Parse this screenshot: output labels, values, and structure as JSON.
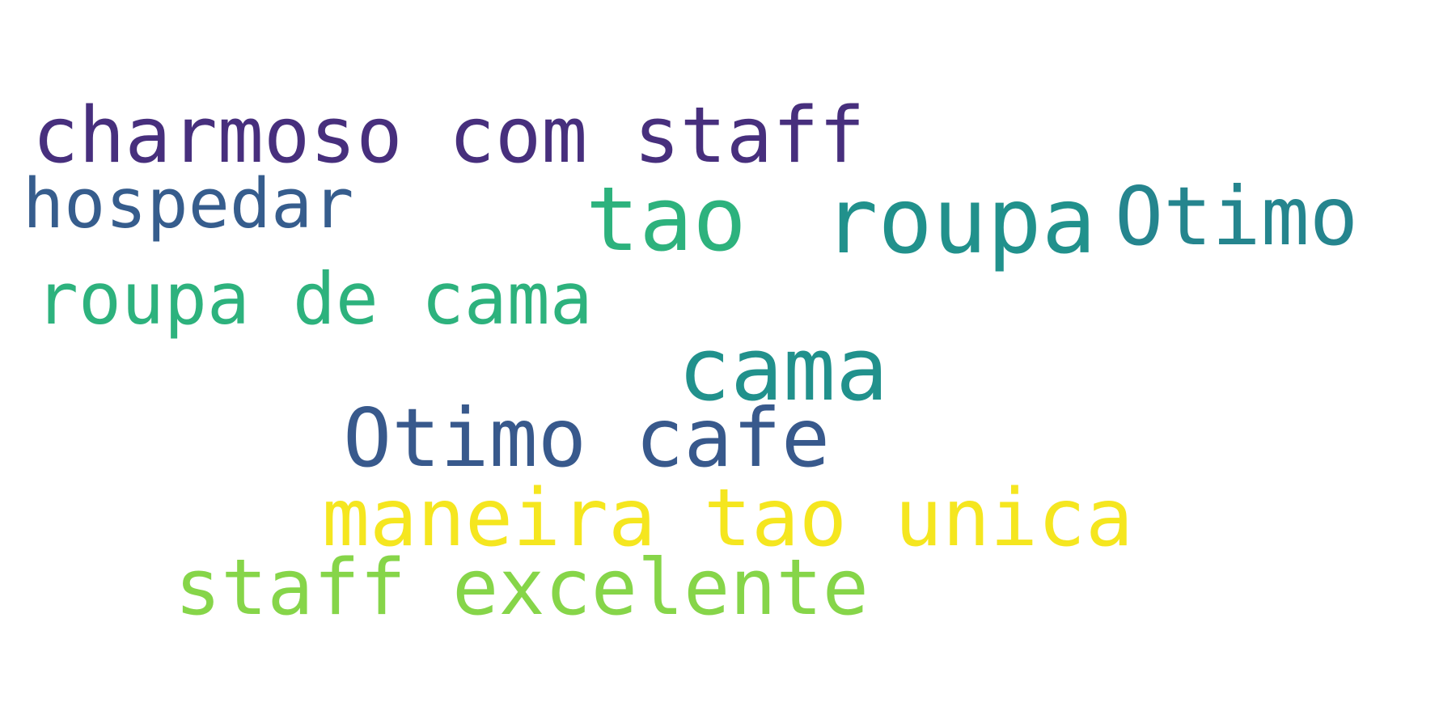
{
  "words": [
    {
      "text": "charmoso com staff",
      "color": "#472f7d"
    },
    {
      "text": "hospedar",
      "color": "#365d8d"
    },
    {
      "text": "tao",
      "color": "#2db27d"
    },
    {
      "text": "roupa",
      "color": "#21918c"
    },
    {
      "text": "Otimo",
      "color": "#25858e"
    },
    {
      "text": "roupa de cama",
      "color": "#2db27d"
    },
    {
      "text": "cama",
      "color": "#21918c"
    },
    {
      "text": "Otimo cafe",
      "color": "#38598c"
    },
    {
      "text": "maneira tao unica",
      "color": "#f5e61f"
    },
    {
      "text": "staff excelente",
      "color": "#86d549"
    }
  ]
}
